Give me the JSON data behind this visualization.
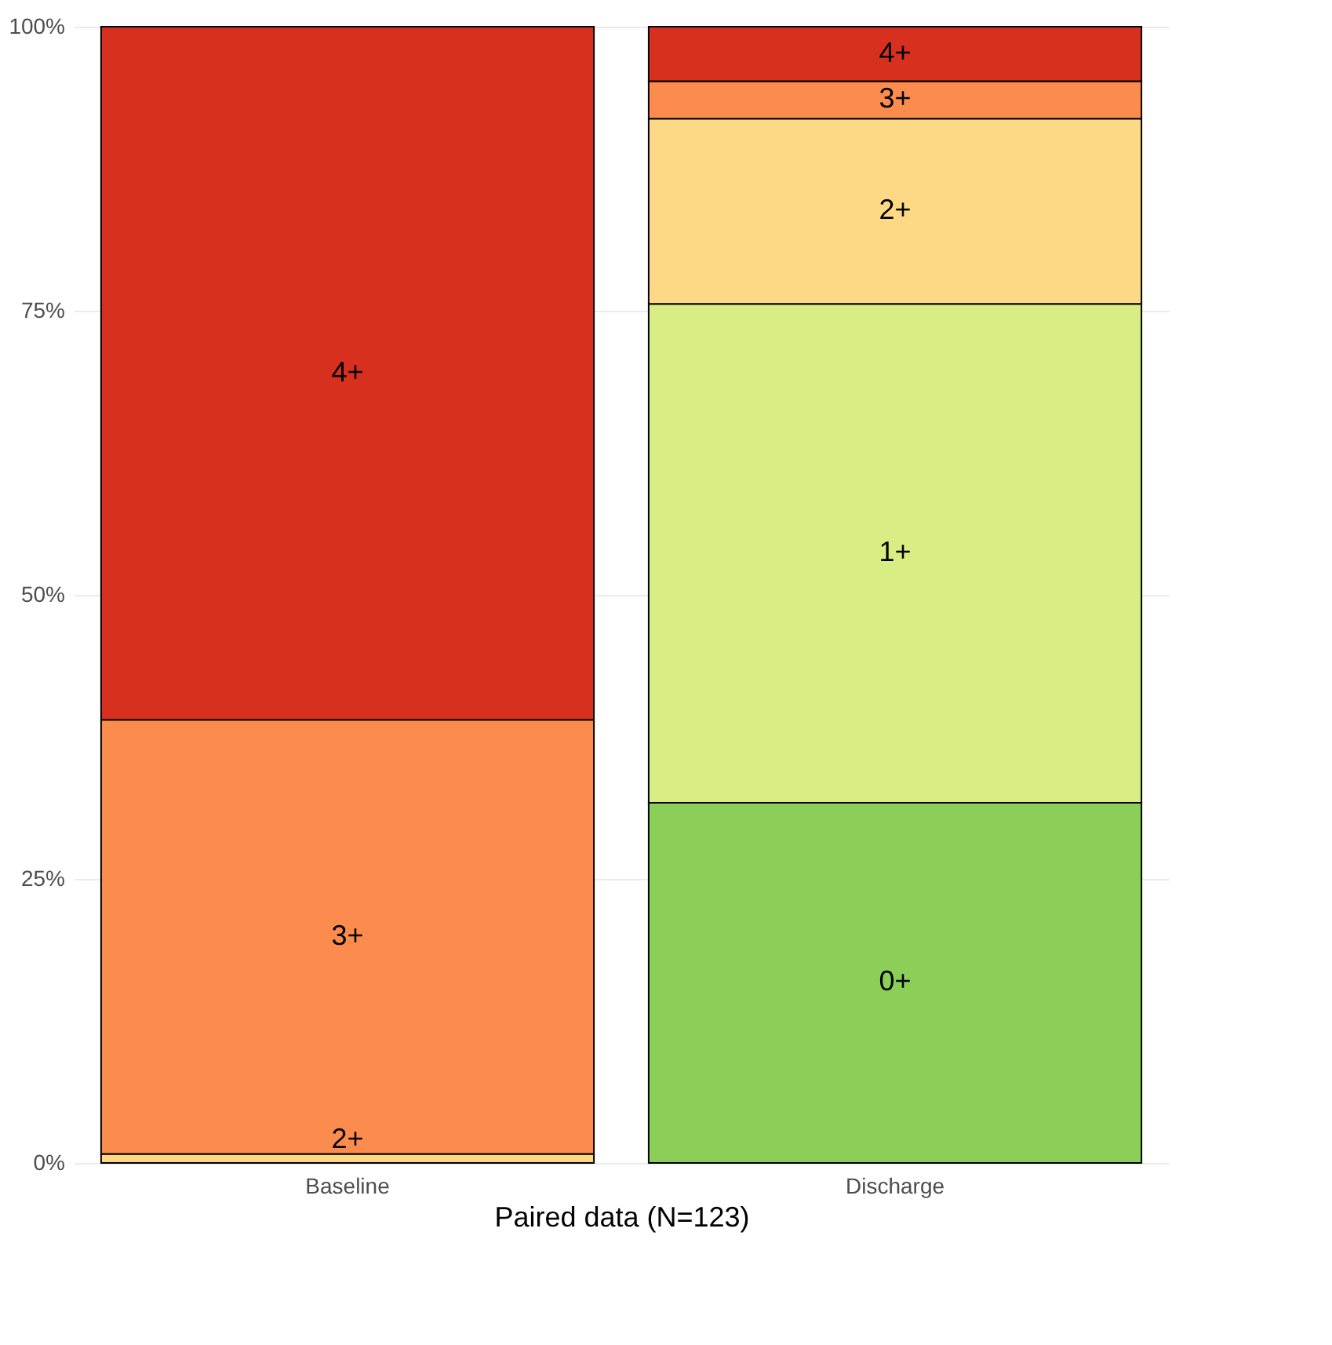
{
  "chart_data": {
    "type": "bar",
    "stacked": true,
    "xlabel": "Paired data (N=123)",
    "categories": [
      "Baseline",
      "Discharge"
    ],
    "series": [
      {
        "name": "0+",
        "color": "#8ccf58",
        "values": [
          null,
          31.7
        ]
      },
      {
        "name": "1+",
        "color": "#d9ed85",
        "values": [
          null,
          43.9
        ]
      },
      {
        "name": "2+",
        "color": "#fdd885",
        "values": [
          0.8,
          16.3
        ]
      },
      {
        "name": "3+",
        "color": "#fc8c4e",
        "values": [
          38.2,
          3.3
        ]
      },
      {
        "name": "4+",
        "color": "#d7301e",
        "values": [
          61.0,
          4.8
        ]
      }
    ],
    "ylim": [
      0,
      100
    ],
    "yticks": [
      {
        "value": 0,
        "label": "0%"
      },
      {
        "value": 25,
        "label": "25%"
      },
      {
        "value": 50,
        "label": "50%"
      },
      {
        "value": 75,
        "label": "75%"
      },
      {
        "value": 100,
        "label": "100%"
      }
    ],
    "grid": true,
    "legend": false
  }
}
